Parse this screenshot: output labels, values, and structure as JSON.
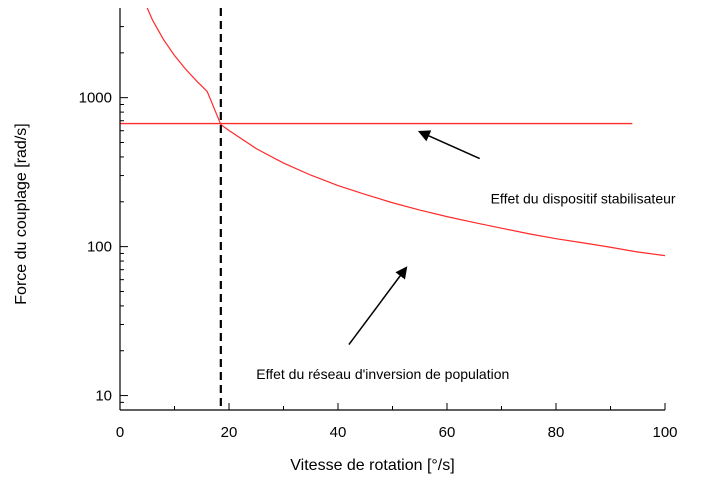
{
  "chart_data": {
    "type": "line",
    "xlabel": "Vitesse de rotation [°/s]",
    "ylabel": "Force du couplage [rad/s]",
    "xlim": [
      0,
      100
    ],
    "ylim": [
      8,
      4000
    ],
    "yscale": "log",
    "grid": false,
    "x_ticks": [
      0,
      20,
      40,
      60,
      80,
      100
    ],
    "x_tick_labels": [
      "0",
      "20",
      "40",
      "60",
      "80",
      "100"
    ],
    "y_ticks": [
      10,
      100,
      1000
    ],
    "y_tick_labels": [
      "10",
      "100",
      "1000"
    ],
    "series": [
      {
        "kind": "curve",
        "color": "#ff2a2a",
        "x": [
          5,
          6,
          8,
          10,
          12,
          14,
          16,
          18.5,
          20,
          25,
          30,
          35,
          40,
          45,
          50,
          55,
          60,
          65,
          70,
          75,
          80,
          85,
          90,
          95,
          100
        ],
        "y": [
          4000,
          3300,
          2450,
          1920,
          1560,
          1300,
          1100,
          660,
          602,
          455,
          364,
          302,
          257,
          224,
          197,
          176,
          159,
          145,
          133,
          122,
          113,
          106,
          99,
          92,
          87
        ]
      },
      {
        "kind": "horizontal",
        "color": "#ff2a2a",
        "x": [
          0,
          94
        ],
        "y": [
          670,
          670
        ]
      },
      {
        "kind": "vertical-dashed",
        "color": "#000000",
        "x": [
          18.5,
          18.5
        ],
        "y": [
          8,
          4000
        ]
      }
    ],
    "annotations": [
      {
        "text": "Effet du dispositif stabilisateur",
        "text_x": 68,
        "text_y": 210,
        "arrow_from_x": 66,
        "arrow_from_y": 390,
        "arrow_to_x": 55,
        "arrow_to_y": 590
      },
      {
        "text": "Effet du réseau d'inversion de population",
        "text_x": 25,
        "text_y": 14,
        "arrow_from_x": 42,
        "arrow_from_y": 22,
        "arrow_to_x": 52.5,
        "arrow_to_y": 72
      }
    ]
  }
}
